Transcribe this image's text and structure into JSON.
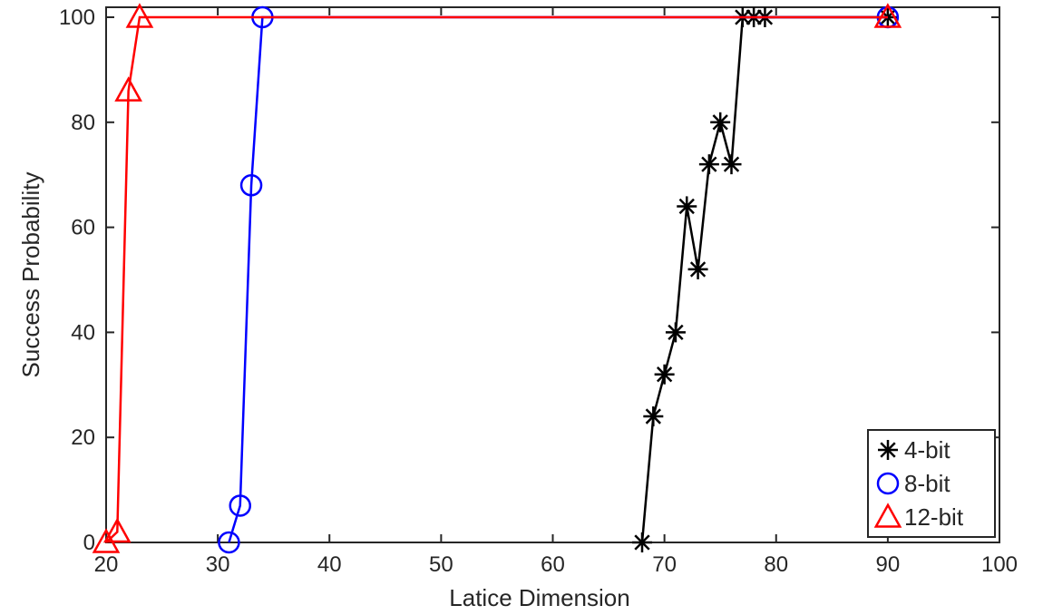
{
  "chart_data": {
    "type": "line",
    "title": "",
    "xlabel": "Latice Dimension",
    "ylabel": "Success Probability",
    "xlim": [
      20,
      100
    ],
    "ylim": [
      0,
      100
    ],
    "xticks": [
      20,
      30,
      40,
      50,
      60,
      70,
      80,
      90,
      100
    ],
    "yticks": [
      0,
      20,
      40,
      60,
      80,
      100
    ],
    "grid": false,
    "legend_position": "bottom-right",
    "series": [
      {
        "name": "4-bit",
        "color": "#000000",
        "marker": "asterisk",
        "x": [
          68,
          69,
          70,
          71,
          72,
          73,
          74,
          75,
          76,
          77,
          78,
          79,
          90
        ],
        "y": [
          0,
          24,
          32,
          40,
          64,
          52,
          72,
          80,
          72,
          100,
          100,
          100,
          100
        ]
      },
      {
        "name": "8-bit",
        "color": "#0000ff",
        "marker": "circle",
        "x": [
          31,
          32,
          33,
          34,
          90
        ],
        "y": [
          0,
          7,
          68,
          100,
          100
        ]
      },
      {
        "name": "12-bit",
        "color": "#ff0000",
        "marker": "triangle",
        "x": [
          20,
          21,
          22,
          23,
          90
        ],
        "y": [
          0,
          2,
          86,
          100,
          100
        ]
      }
    ]
  }
}
